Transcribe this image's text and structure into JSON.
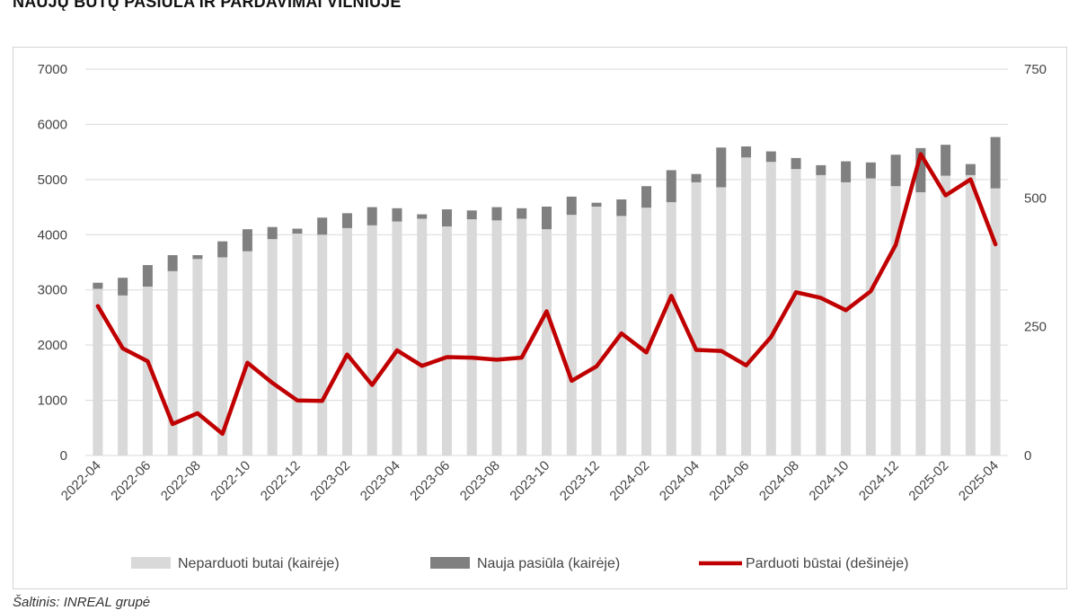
{
  "title": "NAUJŲ BŪTŲ PASIŪLA IR PARDAVIMAI VILNIUJE",
  "source": "Šaltinis: INREAL grupė",
  "colors": {
    "unsold": "#d9d9d9",
    "new_supply": "#808080",
    "sold": "#c00000",
    "grid": "#d9d9d9"
  },
  "chart_data": {
    "type": "bar",
    "stacked": true,
    "title": "NAUJŲ BŪTŲ PASIŪLA IR PARDAVIMAI VILNIUJE",
    "x": [
      "2022-04",
      "2022-05",
      "2022-06",
      "2022-07",
      "2022-08",
      "2022-09",
      "2022-10",
      "2022-11",
      "2022-12",
      "2023-01",
      "2023-02",
      "2023-03",
      "2023-04",
      "2023-05",
      "2023-06",
      "2023-07",
      "2023-08",
      "2023-09",
      "2023-10",
      "2023-11",
      "2023-12",
      "2024-01",
      "2024-02",
      "2024-03",
      "2024-04",
      "2024-05",
      "2024-06",
      "2024-07",
      "2024-08",
      "2024-09",
      "2024-10",
      "2024-11",
      "2024-12",
      "2025-01",
      "2025-02",
      "2025-03",
      "2025-04"
    ],
    "x_tick_labels": [
      "2022-04",
      "2022-06",
      "2022-08",
      "2022-10",
      "2022-12",
      "2023-02",
      "2023-04",
      "2023-06",
      "2023-08",
      "2023-10",
      "2023-12",
      "2024-02",
      "2024-04",
      "2024-06",
      "2024-08",
      "2024-10",
      "2024-12",
      "2025-02",
      "2025-04"
    ],
    "series": [
      {
        "name": "Neparduoti butai (kairėje)",
        "kind": "bar",
        "axis": "left",
        "values": [
          3020,
          2900,
          3060,
          3340,
          3560,
          3590,
          3700,
          3920,
          4020,
          4000,
          4120,
          4170,
          4240,
          4290,
          4150,
          4280,
          4260,
          4290,
          4100,
          4360,
          4510,
          4340,
          4490,
          4590,
          4950,
          4860,
          5400,
          5320,
          5190,
          5080,
          4950,
          5020,
          4880,
          4770,
          5070,
          5080,
          4840
        ]
      },
      {
        "name": "Nauja pasiūla (kairėje)",
        "kind": "bar",
        "axis": "left",
        "values": [
          110,
          320,
          390,
          290,
          70,
          290,
          400,
          220,
          90,
          310,
          270,
          330,
          240,
          80,
          310,
          160,
          240,
          190,
          410,
          330,
          70,
          300,
          390,
          580,
          150,
          720,
          200,
          190,
          200,
          180,
          380,
          290,
          570,
          800,
          560,
          200,
          930
        ]
      },
      {
        "name": "Parduoti būstai (dešinėje)",
        "kind": "line",
        "axis": "right",
        "values": [
          290,
          208,
          183,
          61,
          82,
          42,
          180,
          141,
          107,
          106,
          196,
          137,
          204,
          174,
          191,
          190,
          186,
          190,
          280,
          145,
          173,
          237,
          200,
          310,
          205,
          203,
          175,
          230,
          317,
          306,
          282,
          319,
          409,
          585,
          505,
          536,
          410
        ]
      }
    ],
    "y_left": {
      "min": 0,
      "max": 7000,
      "ticks": [
        0,
        1000,
        2000,
        3000,
        4000,
        5000,
        6000,
        7000
      ]
    },
    "y_right": {
      "min": 0,
      "max": 750,
      "ticks": [
        0,
        250,
        500,
        750
      ]
    },
    "grid": true,
    "legend_position": "bottom"
  }
}
